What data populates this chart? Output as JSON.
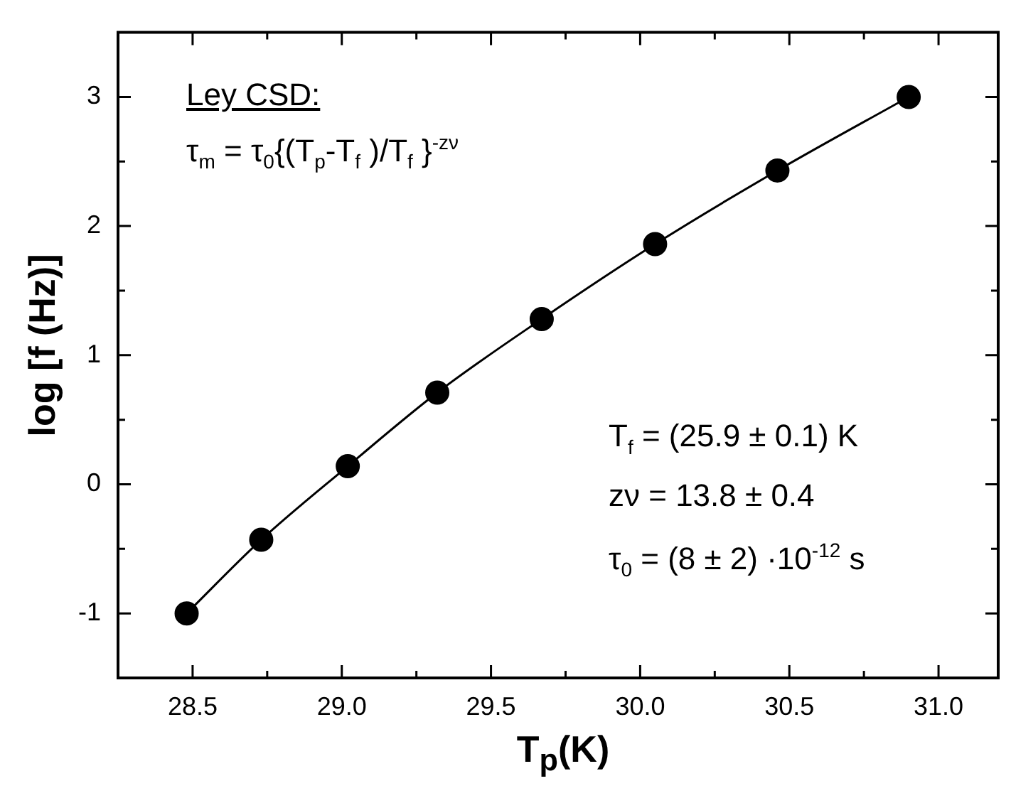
{
  "chart_data": {
    "type": "scatter",
    "xlabel": "T$_{p}$(K)",
    "ylabel": "log [f (Hz)]",
    "x": [
      28.48,
      28.73,
      29.02,
      29.32,
      29.67,
      30.05,
      30.46,
      30.9
    ],
    "series": [
      {
        "color": "#000000",
        "marker": "circle",
        "values": [
          -1.0,
          -0.43,
          0.14,
          0.71,
          1.28,
          1.86,
          2.43,
          3.0
        ]
      },
      {
        "type": "line",
        "color": "#000000",
        "marker": "none",
        "line_style": "solid",
        "x": [
          28.48,
          28.73,
          29.02,
          29.32,
          29.67,
          30.05,
          30.46,
          30.9
        ],
        "values": [
          -1.0,
          -0.43,
          0.14,
          0.71,
          1.28,
          1.86,
          2.43,
          3.0
        ]
      }
    ],
    "xlim": [
      28.25,
      31.2
    ],
    "xticks": [
      28.5,
      {
        "value": 28.75,
        "label": null
      },
      {
        "value": 29,
        "label": "29.0"
      },
      {
        "value": 29.25,
        "label": null
      },
      29.5,
      {
        "value": 29.75,
        "label": null
      },
      {
        "value": 30,
        "label": "30.0"
      },
      {
        "value": 30.25,
        "label": null
      },
      30.5,
      {
        "value": 30.75,
        "label": null
      },
      {
        "value": 31,
        "label": "31.0"
      }
    ],
    "ylim": [
      -1.5,
      3.5
    ],
    "yticks": [
      -1,
      {
        "value": -0.5,
        "label": null
      },
      0,
      {
        "value": 0.5,
        "label": null
      },
      1,
      {
        "value": 1.5,
        "label": null
      },
      2,
      {
        "value": 2.5,
        "label": null
      },
      3
    ],
    "annotations": [
      "Ley CSD:",
      "τ$_{m}$ = τ$_{0}${(T$_{p}$-T$_{f}$ )/T$_{f}$ }$^{-zν}$",
      "T$_{f}$ = (25.9 ± 0.1) K",
      "zν = 13.8 ± 0.4",
      "τ$_{0}$ = (8 ± 2) ·10$^{-12}$ s"
    ]
  }
}
